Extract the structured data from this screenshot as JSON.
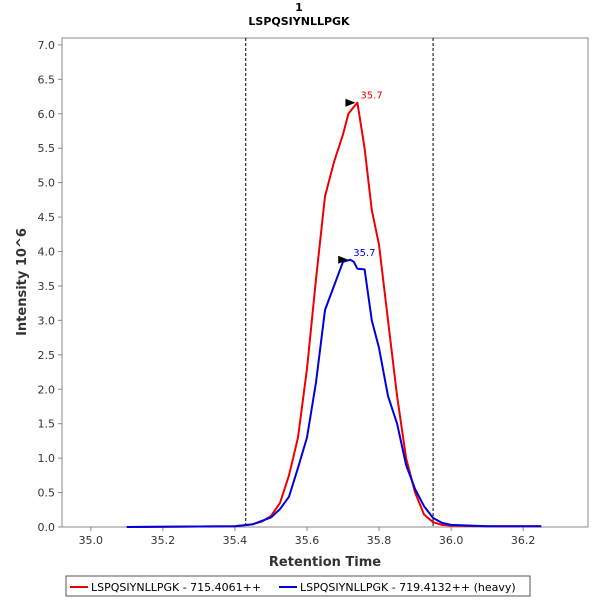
{
  "chart_data": {
    "type": "line",
    "title": "1",
    "subtitle": "LSPQSIYNLLPGK",
    "xlabel": "Retention Time",
    "ylabel": "Intensity 10^6",
    "xlim": [
      34.92,
      36.38
    ],
    "ylim": [
      0,
      7.1
    ],
    "xticks": [
      35.0,
      35.2,
      35.4,
      35.6,
      35.8,
      36.0,
      36.2
    ],
    "xtick_labels": [
      "35.0",
      "35.2",
      "35.4",
      "35.6",
      "35.8",
      "36.0",
      "36.2"
    ],
    "yticks": [
      0.0,
      0.5,
      1.0,
      1.5,
      2.0,
      2.5,
      3.0,
      3.5,
      4.0,
      4.5,
      5.0,
      5.5,
      6.0,
      6.5,
      7.0
    ],
    "ytick_labels": [
      "0.0",
      "0.5",
      "1.0",
      "1.5",
      "2.0",
      "2.5",
      "3.0",
      "3.5",
      "4.0",
      "4.5",
      "5.0",
      "5.5",
      "6.0",
      "6.5",
      "7.0"
    ],
    "grid": false,
    "legend_position": "bottom",
    "integration_boundaries": [
      35.43,
      35.95
    ],
    "series": [
      {
        "name": "LSPQSIYNLLPGK - 715.4061++",
        "color": "#ee0000",
        "peak": {
          "x": 35.74,
          "y": 6.16,
          "label": "35.7"
        },
        "x": [
          35.1,
          35.4,
          35.45,
          35.475,
          35.5,
          35.525,
          35.55,
          35.575,
          35.6,
          35.625,
          35.65,
          35.675,
          35.7,
          35.715,
          35.73,
          35.74,
          35.76,
          35.78,
          35.8,
          35.825,
          35.85,
          35.875,
          35.9,
          35.925,
          35.95,
          35.975,
          36.0,
          36.1,
          36.25
        ],
        "y": [
          0.0,
          0.01,
          0.04,
          0.08,
          0.16,
          0.35,
          0.75,
          1.3,
          2.3,
          3.6,
          4.8,
          5.3,
          5.7,
          6.0,
          6.1,
          6.16,
          5.5,
          4.6,
          4.1,
          3.0,
          1.9,
          1.0,
          0.5,
          0.18,
          0.07,
          0.03,
          0.02,
          0.01,
          0.01
        ]
      },
      {
        "name": "LSPQSIYNLLPGK - 719.4132++ (heavy)",
        "color": "#0000dd",
        "peak": {
          "x": 35.72,
          "y": 3.88,
          "label": "35.7"
        },
        "x": [
          35.1,
          35.4,
          35.45,
          35.475,
          35.5,
          35.525,
          35.55,
          35.575,
          35.6,
          35.625,
          35.65,
          35.675,
          35.7,
          35.72,
          35.73,
          35.74,
          35.76,
          35.78,
          35.8,
          35.825,
          35.85,
          35.875,
          35.9,
          35.925,
          35.95,
          35.975,
          36.0,
          36.1,
          36.25
        ],
        "y": [
          0.0,
          0.01,
          0.04,
          0.09,
          0.14,
          0.26,
          0.44,
          0.86,
          1.3,
          2.1,
          3.15,
          3.5,
          3.85,
          3.88,
          3.85,
          3.75,
          3.74,
          3.0,
          2.6,
          1.9,
          1.5,
          0.9,
          0.55,
          0.3,
          0.13,
          0.06,
          0.03,
          0.01,
          0.01
        ]
      }
    ]
  }
}
